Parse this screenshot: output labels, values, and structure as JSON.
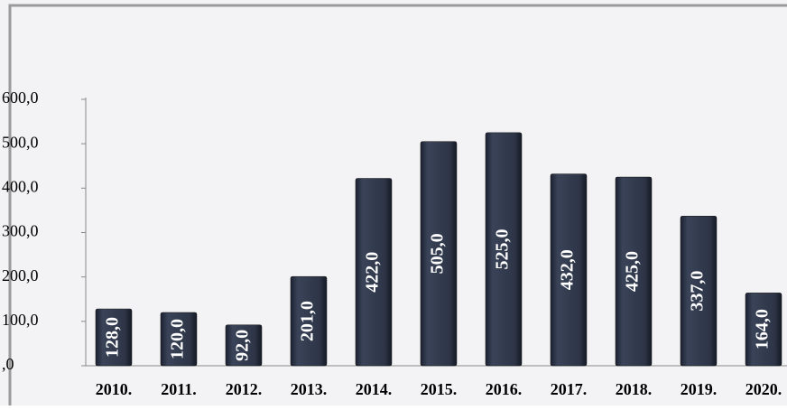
{
  "chart_data": {
    "type": "bar",
    "categories": [
      "2010.",
      "2011.",
      "2012.",
      "2013.",
      "2014.",
      "2015.",
      "2016.",
      "2017.",
      "2018.",
      "2019.",
      "2020."
    ],
    "values": [
      128,
      120,
      92,
      201,
      422,
      505,
      525,
      432,
      425,
      337,
      164
    ],
    "value_labels": [
      "128,0",
      "120,0",
      "92,0",
      "201,0",
      "422,0",
      "505,0",
      "525,0",
      "432,0",
      "425,0",
      "337,0",
      "164,0"
    ],
    "color": "#2d3547",
    "ylim": [
      0,
      600
    ],
    "yticks": [
      {
        "value": 0,
        "label": ",0"
      },
      {
        "value": 100,
        "label": "100,0"
      },
      {
        "value": 200,
        "label": "200,0"
      },
      {
        "value": 300,
        "label": "300,0"
      },
      {
        "value": 400,
        "label": "400,0"
      },
      {
        "value": 500,
        "label": "500,0"
      },
      {
        "value": 600,
        "label": "600,0"
      }
    ],
    "grid": false
  }
}
